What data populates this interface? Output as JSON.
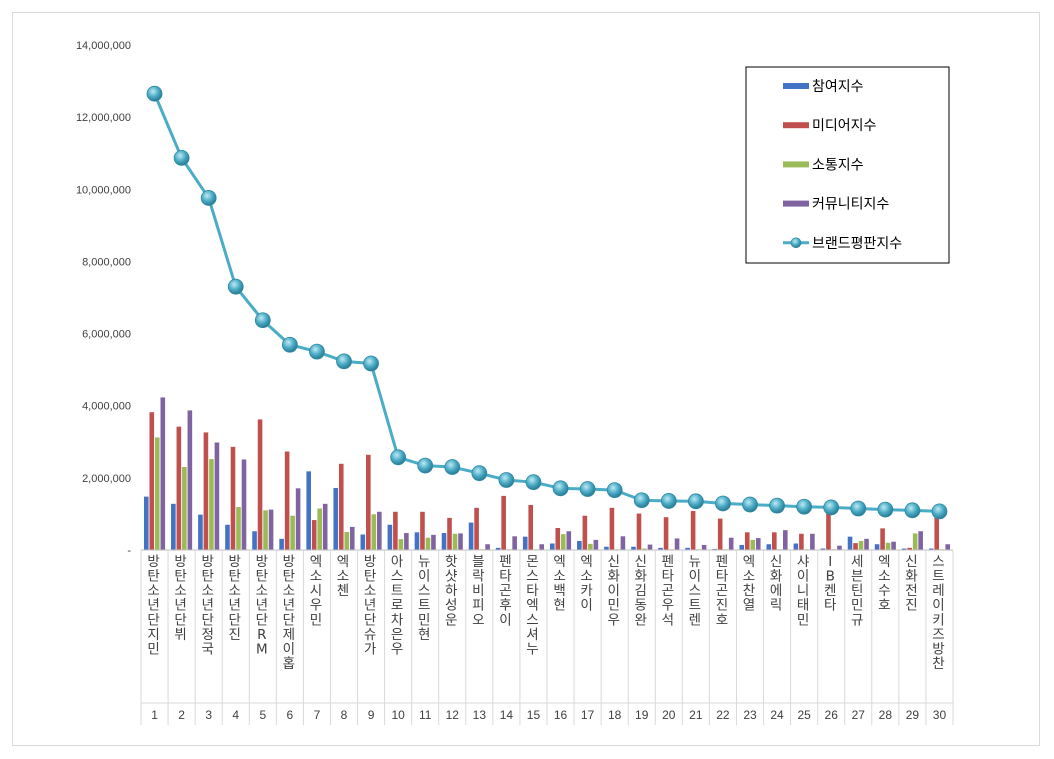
{
  "chart_data": {
    "type": "bar",
    "title": "",
    "xlabel": "",
    "ylabel": "",
    "ylim": [
      0,
      14000000
    ],
    "yticks": [
      "-",
      "2,000,000",
      "4,000,000",
      "6,000,000",
      "8,000,000",
      "10,000,000",
      "12,000,000",
      "14,000,000"
    ],
    "grid": false,
    "legend_position": "top-right",
    "categories": [
      {
        "rank": "1",
        "name": "방탄소년단 지민"
      },
      {
        "rank": "2",
        "name": "방탄소년단 뷔"
      },
      {
        "rank": "3",
        "name": "방탄소년단 정국"
      },
      {
        "rank": "4",
        "name": "방탄소년단 진"
      },
      {
        "rank": "5",
        "name": "방탄소년단 RM"
      },
      {
        "rank": "6",
        "name": "방탄소년단 제이홉"
      },
      {
        "rank": "7",
        "name": "엑소 시우민"
      },
      {
        "rank": "8",
        "name": "엑소 첸"
      },
      {
        "rank": "9",
        "name": "방탄소년단 슈가"
      },
      {
        "rank": "10",
        "name": "아스트로 차은우"
      },
      {
        "rank": "11",
        "name": "뉴이스트 민현"
      },
      {
        "rank": "12",
        "name": "핫샷 하성운"
      },
      {
        "rank": "13",
        "name": "블락비 피오"
      },
      {
        "rank": "14",
        "name": "펜타곤 후이"
      },
      {
        "rank": "15",
        "name": "몬스타엑스 셔누"
      },
      {
        "rank": "16",
        "name": "엑소 백현"
      },
      {
        "rank": "17",
        "name": "엑소 카이"
      },
      {
        "rank": "18",
        "name": "신화 이민우"
      },
      {
        "rank": "19",
        "name": "신화 김동완"
      },
      {
        "rank": "20",
        "name": "펜타곤 우석"
      },
      {
        "rank": "21",
        "name": "뉴이스트 렌"
      },
      {
        "rank": "22",
        "name": "펜타곤 진호"
      },
      {
        "rank": "23",
        "name": "엑소 찬열"
      },
      {
        "rank": "24",
        "name": "신화 에릭"
      },
      {
        "rank": "25",
        "name": "샤이니 태민"
      },
      {
        "rank": "26",
        "name": "IB 켄타"
      },
      {
        "rank": "27",
        "name": "세븐틴 민규"
      },
      {
        "rank": "28",
        "name": "엑소 수호"
      },
      {
        "rank": "29",
        "name": "신화 전진"
      },
      {
        "rank": "30",
        "name": "스트레이키즈 방찬"
      }
    ],
    "series": [
      {
        "name": "참여지수",
        "type": "bar",
        "color": "#4472c4",
        "values": [
          1480000,
          1280000,
          980000,
          700000,
          520000,
          310000,
          2180000,
          1720000,
          430000,
          700000,
          490000,
          470000,
          760000,
          60000,
          370000,
          180000,
          250000,
          90000,
          90000,
          60000,
          60000,
          30000,
          140000,
          160000,
          180000,
          40000,
          370000,
          160000,
          40000,
          40000
        ]
      },
      {
        "name": "미디어지수",
        "type": "bar",
        "color": "#c0504d",
        "values": [
          3820000,
          3420000,
          3260000,
          2860000,
          3620000,
          2730000,
          830000,
          2390000,
          2640000,
          1060000,
          1060000,
          890000,
          1170000,
          1500000,
          1250000,
          610000,
          950000,
          1170000,
          1010000,
          910000,
          1080000,
          870000,
          490000,
          490000,
          450000,
          1090000,
          190000,
          600000,
          60000,
          1040000
        ]
      },
      {
        "name": "소통지수",
        "type": "bar",
        "color": "#9bbb59",
        "values": [
          3120000,
          2300000,
          2520000,
          1190000,
          1100000,
          950000,
          1150000,
          500000,
          990000,
          300000,
          340000,
          450000,
          20000,
          20000,
          20000,
          440000,
          170000,
          20000,
          40000,
          20000,
          20000,
          20000,
          280000,
          20000,
          20000,
          20000,
          250000,
          200000,
          460000,
          20000
        ]
      },
      {
        "name": "커뮤니티지수",
        "type": "bar",
        "color": "#8064a2",
        "values": [
          4230000,
          3870000,
          2980000,
          2510000,
          1120000,
          1710000,
          1280000,
          640000,
          1060000,
          470000,
          420000,
          460000,
          160000,
          380000,
          160000,
          520000,
          280000,
          380000,
          150000,
          320000,
          140000,
          340000,
          330000,
          550000,
          450000,
          120000,
          310000,
          230000,
          520000,
          160000
        ]
      },
      {
        "name": "브랜드평판지수",
        "type": "line",
        "color": "#4bacc6",
        "values": [
          12650000,
          10870000,
          9760000,
          7300000,
          6370000,
          5690000,
          5500000,
          5230000,
          5170000,
          2570000,
          2340000,
          2300000,
          2130000,
          1940000,
          1880000,
          1710000,
          1690000,
          1660000,
          1380000,
          1360000,
          1350000,
          1290000,
          1260000,
          1230000,
          1200000,
          1180000,
          1150000,
          1120000,
          1100000,
          1070000
        ]
      }
    ]
  }
}
